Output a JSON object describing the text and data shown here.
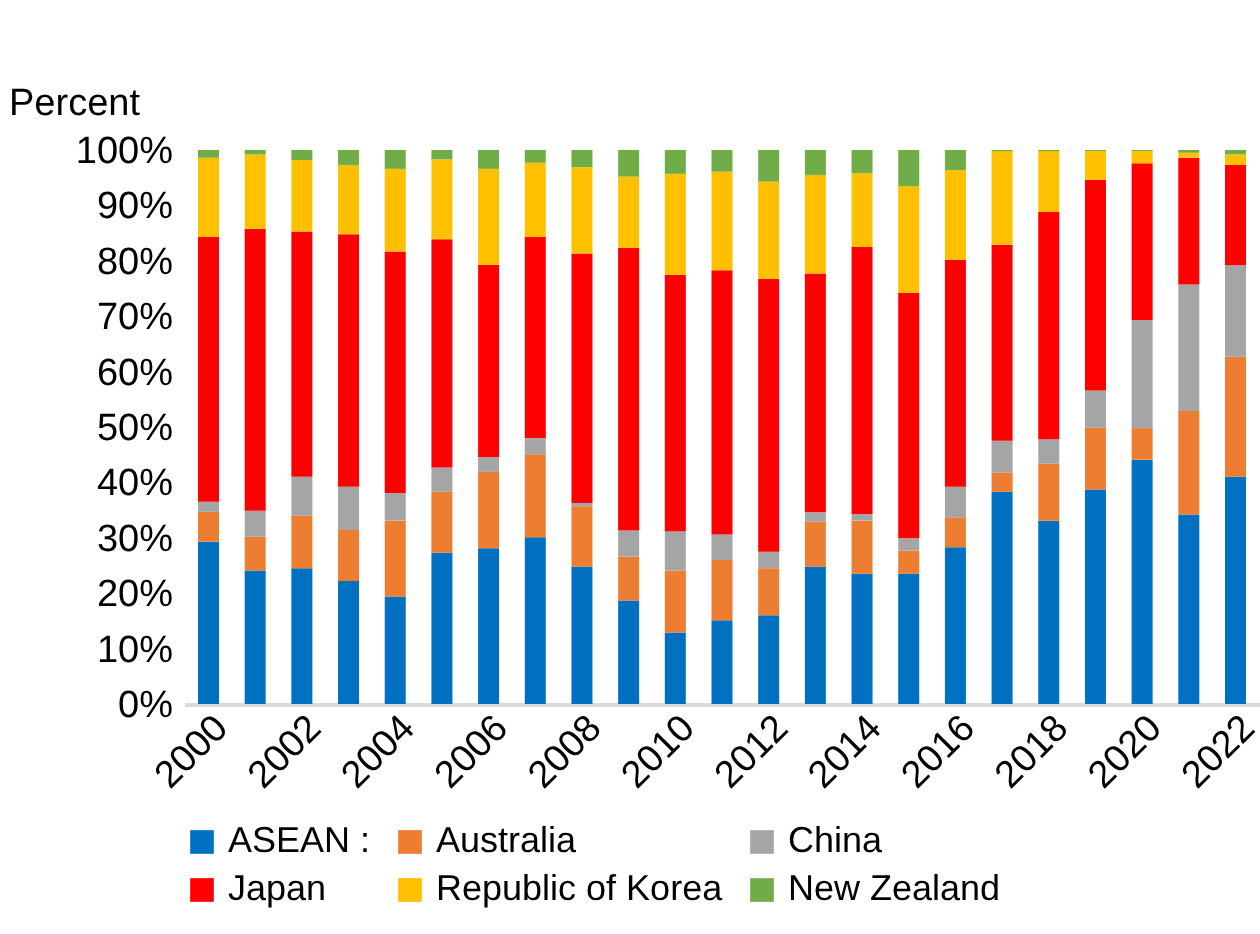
{
  "chart_data": {
    "type": "bar",
    "stacked": true,
    "ylabel": "Percent",
    "categories": [
      "2000",
      null,
      "2002",
      null,
      "2004",
      null,
      "2006",
      null,
      "2008",
      null,
      "2010",
      null,
      "2012",
      null,
      "2014",
      null,
      "2016",
      null,
      "2018",
      null,
      "2020",
      null,
      "2022"
    ],
    "ylim": [
      0,
      100
    ],
    "yticks": [
      {
        "value": 0,
        "label": "0%"
      },
      {
        "value": 10,
        "label": "10%"
      },
      {
        "value": 20,
        "label": "20%"
      },
      {
        "value": 30,
        "label": "30%"
      },
      {
        "value": 40,
        "label": "40%"
      },
      {
        "value": 50,
        "label": "50%"
      },
      {
        "value": 60,
        "label": "60%"
      },
      {
        "value": 70,
        "label": "70%"
      },
      {
        "value": 80,
        "label": "80%"
      },
      {
        "value": 90,
        "label": "90%"
      },
      {
        "value": 100,
        "label": "100%"
      }
    ],
    "grid": false,
    "legend": "bottom",
    "series": [
      {
        "name": "ASEAN :",
        "color": "#0070c0",
        "values": [
          29.3,
          24.1,
          24.5,
          22.2,
          19.4,
          27.3,
          28.1,
          30.1,
          24.8,
          18.7,
          12.9,
          15.1,
          16.0,
          24.8,
          23.5,
          23.5,
          28.3,
          38.3,
          33.1,
          38.7,
          44.1,
          34.2,
          41.0
        ]
      },
      {
        "name": "Australia",
        "color": "#ed7d31",
        "values": [
          5.4,
          6.1,
          9.5,
          9.2,
          13.7,
          11.0,
          13.8,
          15.0,
          10.9,
          7.9,
          11.2,
          10.9,
          8.5,
          8.1,
          9.6,
          4.2,
          5.4,
          3.5,
          10.3,
          11.2,
          5.7,
          18.7,
          21.7
        ]
      },
      {
        "name": "China",
        "color": "#a5a5a5",
        "values": [
          1.8,
          4.7,
          7.0,
          7.8,
          5.0,
          4.4,
          2.7,
          2.9,
          0.6,
          4.7,
          7.1,
          4.6,
          3.0,
          1.7,
          1.2,
          2.2,
          5.5,
          5.7,
          4.4,
          6.7,
          19.5,
          22.8,
          16.5
        ]
      },
      {
        "name": "Japan",
        "color": "#ff0000",
        "values": [
          47.8,
          50.9,
          44.3,
          45.6,
          43.6,
          41.2,
          34.7,
          36.3,
          45.0,
          51.0,
          46.3,
          47.7,
          49.2,
          43.1,
          48.2,
          44.3,
          41.0,
          35.4,
          41.0,
          38.0,
          28.3,
          22.9,
          18.1
        ]
      },
      {
        "name": "Republic of Korea",
        "color": "#ffc000",
        "values": [
          14.3,
          13.4,
          12.9,
          12.5,
          14.9,
          14.4,
          17.3,
          13.4,
          15.6,
          12.9,
          18.2,
          17.8,
          17.6,
          17.8,
          13.3,
          19.3,
          16.2,
          16.9,
          11.0,
          5.2,
          2.2,
          0.9,
          1.9
        ]
      },
      {
        "name": "New Zealand",
        "color": "#70ad47",
        "values": [
          1.4,
          0.8,
          1.8,
          2.7,
          3.4,
          1.7,
          3.4,
          2.3,
          3.1,
          4.8,
          4.3,
          3.9,
          5.7,
          4.5,
          4.2,
          6.5,
          3.6,
          0.2,
          0.2,
          0.2,
          0.2,
          0.5,
          0.8
        ]
      }
    ]
  }
}
